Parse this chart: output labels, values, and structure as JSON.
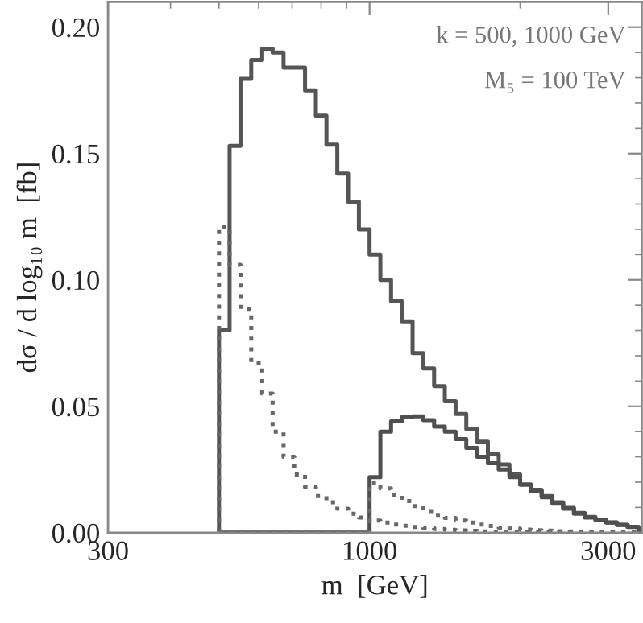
{
  "chart_data": {
    "type": "histogram",
    "xlabel": "m  [GeV]",
    "ylabel": "dσ / d log₁₀ m  [fb]",
    "annotations": [
      "k = 500, 1000 GeV",
      "M₅ = 100 TeV"
    ],
    "log": "x",
    "xlim": [
      300,
      3500
    ],
    "xticks": [
      300,
      1000,
      3000
    ],
    "ylim": [
      0,
      0.21
    ],
    "yticks": [
      {
        "value": 0,
        "label": "0.00"
      },
      {
        "value": 0.05,
        "label": "0.05"
      },
      {
        "value": 0.1,
        "label": "0.10"
      },
      {
        "value": 0.15,
        "label": "0.15"
      },
      {
        "value": 0.2,
        "label": "0.20"
      }
    ],
    "grid": false,
    "bins": [
      500,
      525,
      552,
      580,
      610,
      640,
      673,
      707,
      743,
      781,
      820,
      862,
      906,
      952,
      1000,
      1051,
      1104,
      1160,
      1219,
      1281,
      1346,
      1414,
      1486,
      1561,
      1641,
      1724,
      1812,
      1904,
      2000,
      2102,
      2208,
      2320,
      2438,
      2562,
      2692,
      2828,
      2972,
      3123,
      3281,
      3448
    ],
    "series": [
      {
        "color": "#555555",
        "line_style": "solid",
        "values": [
          0.08,
          0.153,
          0.1795,
          0.187,
          0.1915,
          0.19,
          0.184,
          0.184,
          0.175,
          0.165,
          0.1535,
          0.142,
          0.131,
          0.12,
          0.11,
          0.1,
          0.0916,
          0.0836,
          0.071,
          0.065,
          0.058,
          0.052,
          0.047,
          0.041,
          0.036,
          0.031,
          0.027,
          0.023,
          0.019,
          0.017,
          0.0145,
          0.012,
          0.0098,
          0.0078,
          0.0062,
          0.0051,
          0.0041,
          0.0031,
          0.0023
        ]
      },
      {
        "color": "#4f4f4f",
        "line_style": "solid",
        "values": [
          0,
          0,
          0,
          0,
          0,
          0,
          0,
          0,
          0,
          0,
          0,
          0,
          0,
          0,
          0.022,
          0.04,
          0.044,
          0.0457,
          0.046,
          0.0445,
          0.042,
          0.04,
          0.037,
          0.0335,
          0.03,
          0.0275,
          0.025,
          0.022,
          0.019,
          0.0165,
          0.014,
          0.0115,
          0.0095,
          0.0075,
          0.006,
          0.005,
          0.004,
          0.003,
          0.0022
        ]
      },
      {
        "color": "#666666",
        "line_style": "dotted",
        "values": [
          0.121,
          0.106,
          0.0885,
          0.067,
          0.055,
          0.04,
          0.03,
          0.023,
          0.018,
          0.0145,
          0.012,
          0.0095,
          0.0075,
          0.006,
          0.0048,
          0.004,
          0.0032,
          0.0027,
          0.0022,
          0.0018,
          0.0014,
          0.0011,
          0.0009,
          0.0007,
          0.0005,
          0.0004,
          0.0003,
          0.0002,
          0.0002,
          0.0002,
          0.0002,
          0.0001,
          0.0001,
          0.0001,
          0.0001,
          0.0001,
          0.0001,
          0.0001,
          0.0001
        ]
      },
      {
        "color": "#6b6b6b",
        "line_style": "dotted",
        "values": [
          0,
          0,
          0,
          0,
          0,
          0,
          0,
          0,
          0,
          0,
          0,
          0,
          0,
          0,
          0.0197,
          0.0175,
          0.015,
          0.0125,
          0.0105,
          0.0085,
          0.007,
          0.0058,
          0.0048,
          0.004,
          0.0032,
          0.0026,
          0.002,
          0.0016,
          0.0012,
          0.001,
          0.0008,
          0.0006,
          0.0005,
          0.0004,
          0.0003,
          0.0002,
          0.0002,
          0.0001,
          0.0001
        ]
      }
    ]
  }
}
